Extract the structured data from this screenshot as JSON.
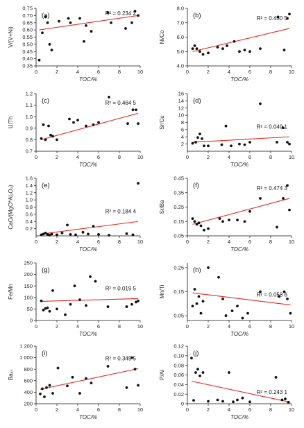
{
  "chart_data": [
    {
      "type": "scatter",
      "panel_label": "(a)",
      "r2_text": "R² = 0.234 2",
      "xlabel": "TOC/%",
      "ylabel": "V/(V+Ni)",
      "xlim": [
        0,
        10
      ],
      "ylim": [
        0.35,
        0.75
      ],
      "x_ticks": [
        0,
        2,
        4,
        6,
        8,
        10
      ],
      "y_ticks": [
        0.35,
        0.4,
        0.45,
        0.5,
        0.55,
        0.6,
        0.65,
        0.7,
        0.75
      ],
      "y_tick_labels": [
        "0.35",
        "0.40",
        "0.45",
        "0.50",
        "0.55",
        "0.60",
        "0.65",
        "0.70",
        "0.75"
      ],
      "x": [
        0.3,
        0.6,
        0.9,
        1.1,
        1.3,
        1.5,
        2.2,
        3.1,
        3.3,
        4.2,
        4.6,
        4.8,
        5.3,
        6.9,
        7.2,
        8.6,
        9.2,
        9.5,
        9.8
      ],
      "y": [
        0.39,
        0.58,
        0.69,
        0.65,
        0.5,
        0.46,
        0.66,
        0.68,
        0.65,
        0.68,
        0.52,
        0.63,
        0.59,
        0.72,
        0.65,
        0.61,
        0.65,
        0.73,
        0.7
      ],
      "trend": [
        [
          0.3,
          0.6
        ],
        [
          9.8,
          0.7
        ]
      ]
    },
    {
      "type": "scatter",
      "panel_label": "(b)",
      "r2_text": "R² = 0.450 5",
      "xlabel": "TOC/%",
      "ylabel": "Ni/Co",
      "xlim": [
        0,
        10
      ],
      "ylim": [
        4,
        8
      ],
      "x_ticks": [
        0,
        2,
        4,
        6,
        8,
        10
      ],
      "y_ticks": [
        4,
        5,
        6,
        7,
        8
      ],
      "y_tick_labels": [
        "4.0",
        "5.0",
        "6.0",
        "7.0",
        "8.0"
      ],
      "x": [
        0.5,
        0.7,
        0.9,
        1.2,
        1.5,
        2.0,
        2.9,
        3.4,
        3.8,
        4.5,
        5.0,
        5.5,
        6.0,
        7.0,
        8.7,
        9.3,
        9.6,
        9.8
      ],
      "y": [
        5.2,
        5.4,
        5.2,
        5.0,
        4.8,
        4.9,
        5.3,
        5.2,
        5.4,
        5.7,
        5.0,
        5.1,
        5.0,
        5.2,
        7.4,
        5.1,
        7.3,
        7.6
      ],
      "trend": [
        [
          0.5,
          5.0
        ],
        [
          9.8,
          6.6
        ]
      ]
    },
    {
      "type": "scatter",
      "panel_label": "(c)",
      "r2_text": "R² = 0.464 5",
      "xlabel": "TOC/%",
      "ylabel": "U/Th",
      "xlim": [
        0,
        10
      ],
      "ylim": [
        0.7,
        1.2
      ],
      "x_ticks": [
        0,
        2,
        4,
        6,
        8,
        10
      ],
      "y_ticks": [
        0.7,
        0.8,
        0.9,
        1.0,
        1.1,
        1.2
      ],
      "y_tick_labels": [
        "0.7",
        "0.8",
        "0.9",
        "1.0",
        "1.1",
        "1.2"
      ],
      "x": [
        0.5,
        0.7,
        0.9,
        1.2,
        1.4,
        1.6,
        2.0,
        3.2,
        3.6,
        4.0,
        4.8,
        5.5,
        6.0,
        7.0,
        8.8,
        9.3,
        9.6,
        9.8
      ],
      "y": [
        0.81,
        0.93,
        0.8,
        0.92,
        0.84,
        0.83,
        0.8,
        0.98,
        0.95,
        0.97,
        0.92,
        0.93,
        0.95,
        1.17,
        0.94,
        1.06,
        1.06,
        0.94
      ],
      "trend": [
        [
          0.5,
          0.8
        ],
        [
          9.8,
          1.03
        ]
      ]
    },
    {
      "type": "scatter",
      "panel_label": "(d)",
      "r2_text": "R² = 0.049 1",
      "xlabel": "TOC/%",
      "ylabel": "Sr/Cu",
      "xlim": [
        0,
        10
      ],
      "ylim": [
        0,
        16
      ],
      "x_ticks": [
        0,
        2,
        4,
        6,
        8,
        10
      ],
      "y_ticks": [
        2,
        4,
        6,
        8,
        10,
        12,
        14,
        16
      ],
      "y_tick_labels": [
        "2",
        "4",
        "6",
        "8",
        "10",
        "12",
        "14",
        "16"
      ],
      "x": [
        0.5,
        0.8,
        1.0,
        1.2,
        1.4,
        1.6,
        2.0,
        3.3,
        3.7,
        4.2,
        5.0,
        5.5,
        6.0,
        7.0,
        8.6,
        9.2,
        9.6,
        9.8
      ],
      "y": [
        2.2,
        2.5,
        3.8,
        4.8,
        3.5,
        1.5,
        1.5,
        1.8,
        7.0,
        1.5,
        2.0,
        1.8,
        2.5,
        13.2,
        2.5,
        6.5,
        2.5,
        2.0
      ],
      "trend": [
        [
          0.5,
          2.5
        ],
        [
          9.8,
          4.0
        ]
      ]
    },
    {
      "type": "scatter",
      "panel_label": "(e)",
      "r2_text": "R² = 0.184 4",
      "xlabel": "TOC/%",
      "ylabel": "CaO/(MgO*Al₂O₃)",
      "xlim": [
        0,
        10
      ],
      "ylim": [
        0,
        1.6
      ],
      "x_ticks": [
        0,
        2,
        4,
        6,
        8,
        10
      ],
      "y_ticks": [
        0.2,
        0.4,
        0.6,
        0.8,
        1.0,
        1.2,
        1.4,
        1.6
      ],
      "y_tick_labels": [
        "0.2",
        "0.4",
        "0.6",
        "0.8",
        "1.0",
        "1.2",
        "1.4",
        "1.6"
      ],
      "x": [
        0.5,
        0.7,
        0.9,
        1.1,
        1.3,
        1.5,
        2.0,
        2.5,
        3.0,
        3.3,
        3.8,
        4.5,
        5.0,
        5.5,
        6.0,
        7.0,
        8.7,
        9.3,
        9.8
      ],
      "y": [
        0.03,
        0.05,
        0.08,
        0.04,
        0.02,
        0.05,
        0.03,
        0.08,
        0.3,
        0.04,
        0.03,
        0.1,
        0.05,
        0.27,
        0.04,
        0.02,
        0.06,
        0.03,
        1.46
      ],
      "trend": [
        [
          0.5,
          0.05
        ],
        [
          9.8,
          0.4
        ]
      ]
    },
    {
      "type": "scatter",
      "panel_label": "(f)",
      "r2_text": "R² = 0.474 3",
      "xlabel": "TOC/%",
      "ylabel": "Sr/Ba",
      "xlim": [
        0,
        10
      ],
      "ylim": [
        0.05,
        0.45
      ],
      "x_ticks": [
        0,
        2,
        4,
        6,
        8,
        10
      ],
      "y_ticks": [
        0.05,
        0.15,
        0.25,
        0.35,
        0.45
      ],
      "y_tick_labels": [
        "0.05",
        "0.15",
        "0.25",
        "0.35",
        "0.45"
      ],
      "x": [
        0.5,
        0.7,
        0.9,
        1.1,
        1.3,
        1.6,
        2.0,
        3.1,
        3.4,
        4.0,
        4.8,
        5.5,
        6.0,
        7.0,
        8.6,
        9.2,
        9.6,
        9.8
      ],
      "y": [
        0.17,
        0.15,
        0.13,
        0.14,
        0.12,
        0.09,
        0.1,
        0.17,
        0.15,
        0.16,
        0.16,
        0.15,
        0.22,
        0.31,
        0.11,
        0.31,
        0.4,
        0.23
      ],
      "trend": [
        [
          0.5,
          0.13
        ],
        [
          9.8,
          0.31
        ]
      ]
    },
    {
      "type": "scatter",
      "panel_label": "(g)",
      "r2_text": "R² = 0.019 5",
      "xlabel": "TOC/%",
      "ylabel": "Fe/Mn",
      "xlim": [
        0,
        10
      ],
      "ylim": [
        0,
        250
      ],
      "x_ticks": [
        0,
        2,
        4,
        6,
        8,
        10
      ],
      "y_ticks": [
        0,
        50,
        100,
        150,
        200,
        250
      ],
      "y_tick_labels": [
        "0",
        "50",
        "100",
        "150",
        "200",
        "250"
      ],
      "x": [
        0.5,
        0.7,
        0.9,
        1.1,
        1.3,
        1.6,
        2.0,
        2.8,
        3.3,
        3.7,
        4.2,
        4.8,
        5.2,
        5.7,
        6.9,
        8.7,
        9.2,
        9.6,
        9.8
      ],
      "y": [
        85,
        45,
        52,
        55,
        40,
        130,
        50,
        25,
        70,
        150,
        90,
        65,
        190,
        170,
        60,
        60,
        70,
        80,
        85
      ],
      "trend": [
        [
          0.5,
          83
        ],
        [
          9.8,
          95
        ]
      ]
    },
    {
      "type": "scatter",
      "panel_label": "(h)",
      "r2_text": "R² = 0.058 6",
      "xlabel": "TOC/%",
      "ylabel": "Mn/Ti",
      "xlim": [
        0,
        10
      ],
      "ylim": [
        0.03,
        0.27
      ],
      "x_ticks": [
        0,
        2,
        4,
        6,
        8,
        10
      ],
      "y_ticks": [
        0.05,
        0.15,
        0.25
      ],
      "y_tick_labels": [
        "0.05",
        "0.15",
        "0.25"
      ],
      "x": [
        0.5,
        0.7,
        0.9,
        1.1,
        1.3,
        1.5,
        2.0,
        3.0,
        3.4,
        3.7,
        4.3,
        4.8,
        5.3,
        5.8,
        7.0,
        8.8,
        9.3,
        9.6,
        9.9
      ],
      "y": [
        0.09,
        0.16,
        0.1,
        0.13,
        0.06,
        0.11,
        0.25,
        0.21,
        0.12,
        0.05,
        0.07,
        0.09,
        0.04,
        0.06,
        0.15,
        0.13,
        0.15,
        0.12,
        0.06
      ],
      "trend": [
        [
          0.5,
          0.145
        ],
        [
          9.9,
          0.095
        ]
      ]
    },
    {
      "type": "scatter",
      "panel_label": "(i)",
      "r2_text": "R² = 0.345 5",
      "xlabel": "TOC/%",
      "ylabel": "Baₓₛ",
      "xlim": [
        0,
        10
      ],
      "ylim": [
        200,
        1200
      ],
      "x_ticks": [
        0,
        2,
        4,
        6,
        8,
        10
      ],
      "y_ticks": [
        200,
        400,
        600,
        800,
        1000,
        1200
      ],
      "y_tick_labels": [
        "200",
        "400",
        "600",
        "800",
        "1 000",
        "1 200"
      ],
      "x": [
        0.4,
        0.6,
        0.8,
        1.0,
        1.3,
        1.6,
        2.1,
        3.0,
        3.5,
        4.2,
        4.8,
        5.3,
        6.9,
        8.7,
        9.2,
        9.5,
        9.8
      ],
      "y": [
        370,
        460,
        320,
        480,
        520,
        380,
        820,
        510,
        660,
        380,
        640,
        560,
        850,
        480,
        1000,
        800,
        520
      ],
      "trend": [
        [
          0.4,
          450
        ],
        [
          9.8,
          810
        ]
      ]
    },
    {
      "type": "scatter",
      "panel_label": "(j)",
      "r2_text": "R² = 0.243 1",
      "xlabel": "TOC/%",
      "ylabel": "P/Al",
      "xlim": [
        0,
        10
      ],
      "ylim": [
        0,
        0.12
      ],
      "x_ticks": [
        0,
        2,
        4,
        6,
        8,
        10
      ],
      "y_ticks": [
        0,
        0.02,
        0.04,
        0.06,
        0.08,
        0.1,
        0.12
      ],
      "y_tick_labels": [
        "0",
        "0.02",
        "0.04",
        "0.06",
        "0.08",
        "0.10",
        "0.12"
      ],
      "x": [
        0.4,
        0.6,
        0.8,
        1.0,
        1.2,
        1.5,
        2.0,
        2.9,
        3.4,
        4.0,
        4.4,
        4.8,
        5.3,
        6.0,
        8.5,
        9.1,
        9.4,
        9.7
      ],
      "y": [
        0.095,
        0.007,
        0.065,
        0.072,
        0.058,
        0.065,
        0.005,
        0.008,
        0.005,
        0.065,
        0.004,
        0.008,
        0.012,
        0.004,
        0.055,
        0.008,
        0.01,
        0.003
      ],
      "trend": [
        [
          0.4,
          0.047
        ],
        [
          9.9,
          0.003
        ]
      ]
    }
  ]
}
